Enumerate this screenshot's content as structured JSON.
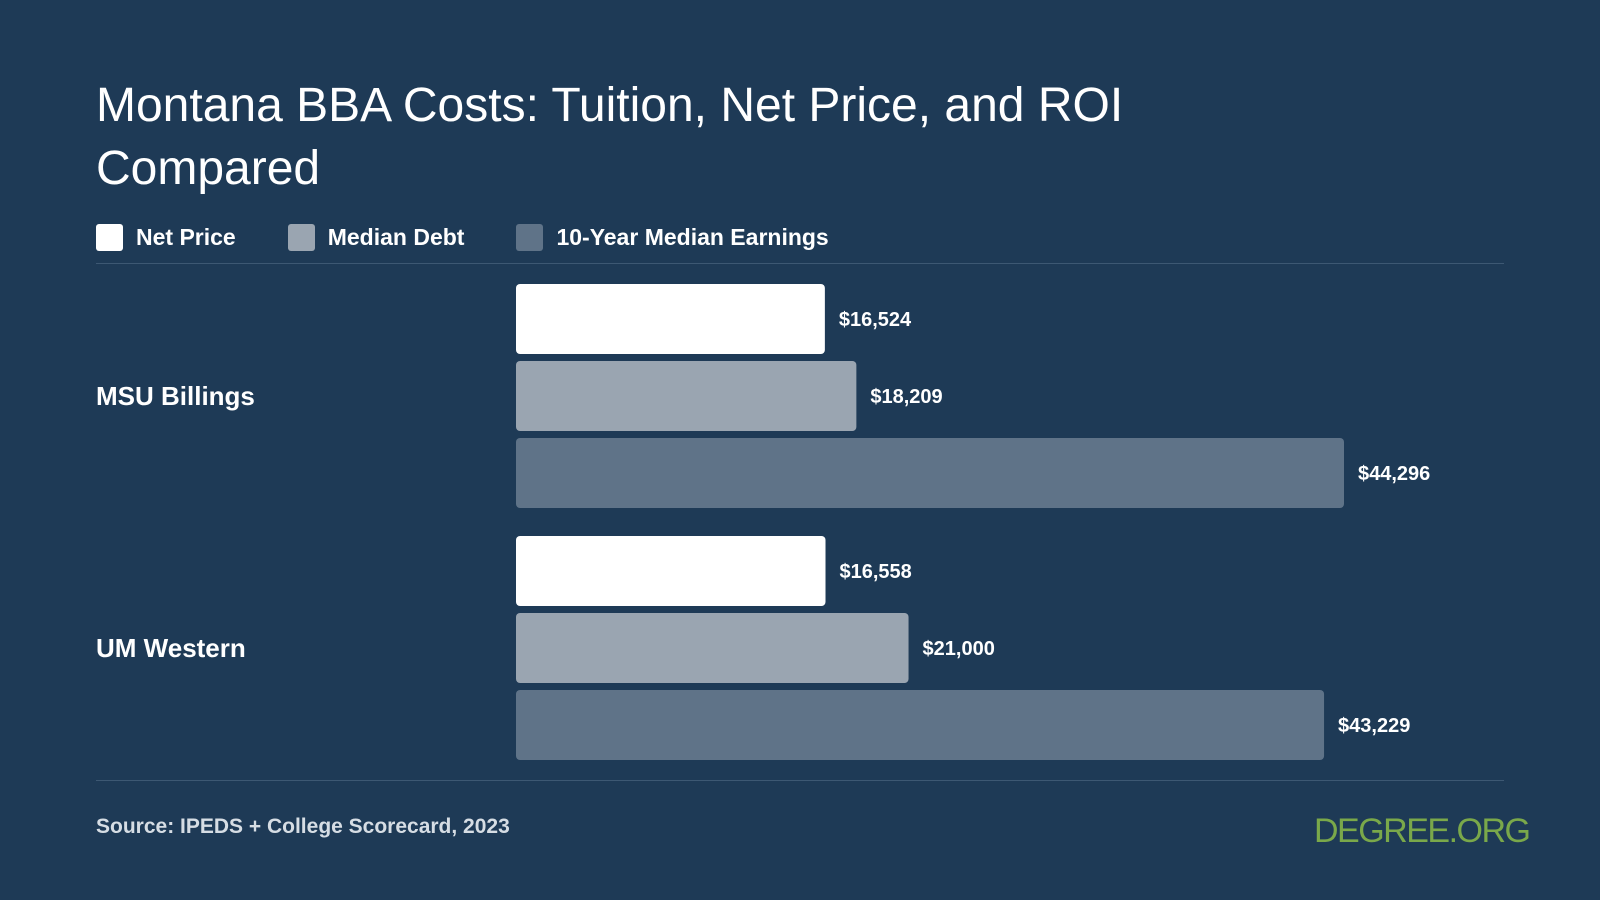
{
  "title": "Montana BBA Costs: Tuition, Net Price, and ROI Compared",
  "legend": [
    {
      "label": "Net Price",
      "color": "#ffffff"
    },
    {
      "label": "Median Debt",
      "color": "#9aa5b1"
    },
    {
      "label": "10-Year Median Earnings",
      "color": "#5f7388"
    }
  ],
  "chart_data": {
    "type": "bar",
    "orientation": "horizontal",
    "categories": [
      "MSU Billings",
      "UM Western"
    ],
    "series": [
      {
        "name": "Net Price",
        "values": [
          16524,
          16558
        ],
        "labels": [
          "$16,524",
          "$16,558"
        ],
        "color": "#ffffff"
      },
      {
        "name": "Median Debt",
        "values": [
          18209,
          21000
        ],
        "labels": [
          "$18,209",
          "$21,000"
        ],
        "color": "#9aa5b1"
      },
      {
        "name": "10-Year Median Earnings",
        "values": [
          44296,
          43229
        ],
        "labels": [
          "$44,296",
          "$43,229"
        ],
        "color": "#5f7388"
      }
    ],
    "xlim": [
      0,
      44296
    ],
    "grid": false,
    "legend_position": "top-left"
  },
  "footer": {
    "source": "Source: IPEDS + College Scorecard, 2023",
    "logo": "DEGREE.ORG"
  }
}
